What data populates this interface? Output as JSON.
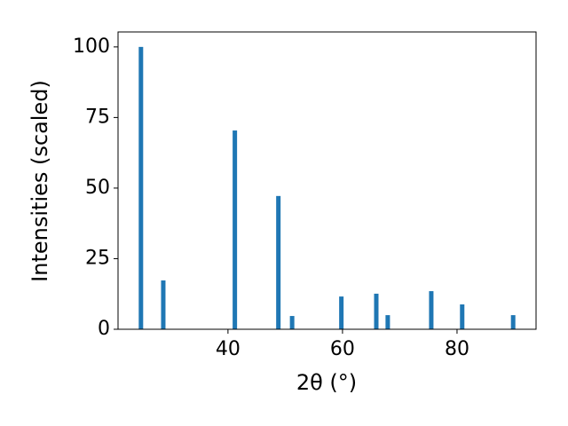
{
  "chart_data": {
    "type": "bar",
    "x_label": "2θ (°)",
    "y_label": "Intensities (scaled)",
    "x": [
      24.8,
      28.7,
      41.2,
      48.8,
      51.2,
      59.8,
      65.9,
      67.9,
      75.5,
      80.9,
      89.8
    ],
    "values": [
      100,
      17.3,
      70.4,
      47.2,
      4.7,
      11.6,
      12.6,
      5.0,
      13.5,
      8.8,
      5.0
    ],
    "color": "#1f77b4",
    "xlim": [
      20.8,
      93.8
    ],
    "xticks": [
      40,
      60,
      80
    ],
    "ylim": [
      0,
      105.3
    ],
    "yticks": [
      0,
      25,
      50,
      75,
      100
    ]
  }
}
